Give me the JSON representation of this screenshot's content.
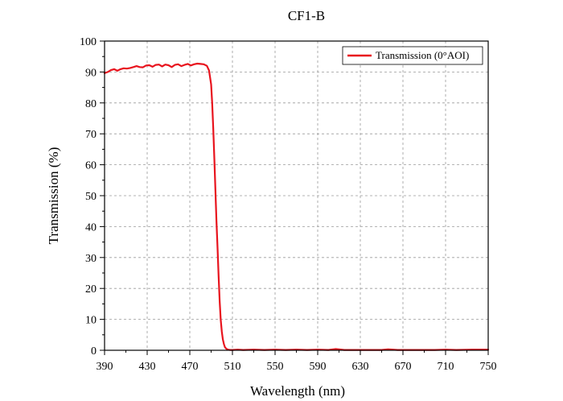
{
  "chart_data": {
    "type": "line",
    "title": "CF1-B",
    "xlabel": "Wavelength (nm)",
    "ylabel": "Transmission (%)",
    "xlim": [
      390,
      750
    ],
    "ylim": [
      0,
      100
    ],
    "x_ticks": [
      390,
      430,
      470,
      510,
      550,
      590,
      630,
      670,
      710,
      750
    ],
    "y_ticks": [
      0,
      10,
      20,
      30,
      40,
      50,
      60,
      70,
      80,
      90,
      100
    ],
    "grid": true,
    "legend_position": "top-right",
    "series": [
      {
        "name": "Transmission (0°AOI)",
        "color": "#e8141e",
        "x": [
          390,
          393,
          396,
          399,
          402,
          405,
          408,
          411,
          414,
          417,
          420,
          423,
          426,
          429,
          432,
          435,
          438,
          441,
          444,
          447,
          450,
          453,
          456,
          459,
          462,
          465,
          468,
          471,
          474,
          477,
          480,
          483,
          486,
          488,
          490,
          491,
          492,
          493,
          494,
          495,
          496,
          497,
          498,
          499,
          500,
          501,
          502,
          503,
          504,
          505,
          506,
          507,
          508,
          510,
          515,
          520,
          530,
          540,
          550,
          560,
          570,
          580,
          590,
          600,
          607,
          615,
          630,
          650,
          656,
          665,
          680,
          700,
          710,
          720,
          735,
          750
        ],
        "y": [
          89.6,
          90.0,
          90.6,
          90.9,
          90.4,
          90.9,
          91.2,
          91.1,
          91.3,
          91.6,
          91.9,
          91.6,
          91.5,
          92.1,
          92.2,
          91.7,
          92.3,
          92.4,
          91.8,
          92.4,
          92.2,
          91.6,
          92.3,
          92.5,
          91.9,
          92.3,
          92.6,
          92.1,
          92.5,
          92.7,
          92.6,
          92.5,
          92.0,
          90.5,
          86.0,
          80.0,
          72.0,
          62.0,
          52.0,
          42.0,
          33.0,
          24.0,
          16.0,
          10.0,
          6.0,
          3.5,
          2.0,
          1.0,
          0.6,
          0.3,
          0.2,
          0.15,
          0.1,
          0.1,
          0.2,
          0.1,
          0.2,
          0.1,
          0.2,
          0.1,
          0.2,
          0.1,
          0.2,
          0.1,
          0.4,
          0.1,
          0.1,
          0.1,
          0.3,
          0.1,
          0.1,
          0.1,
          0.2,
          0.1,
          0.2,
          0.2
        ]
      }
    ]
  }
}
